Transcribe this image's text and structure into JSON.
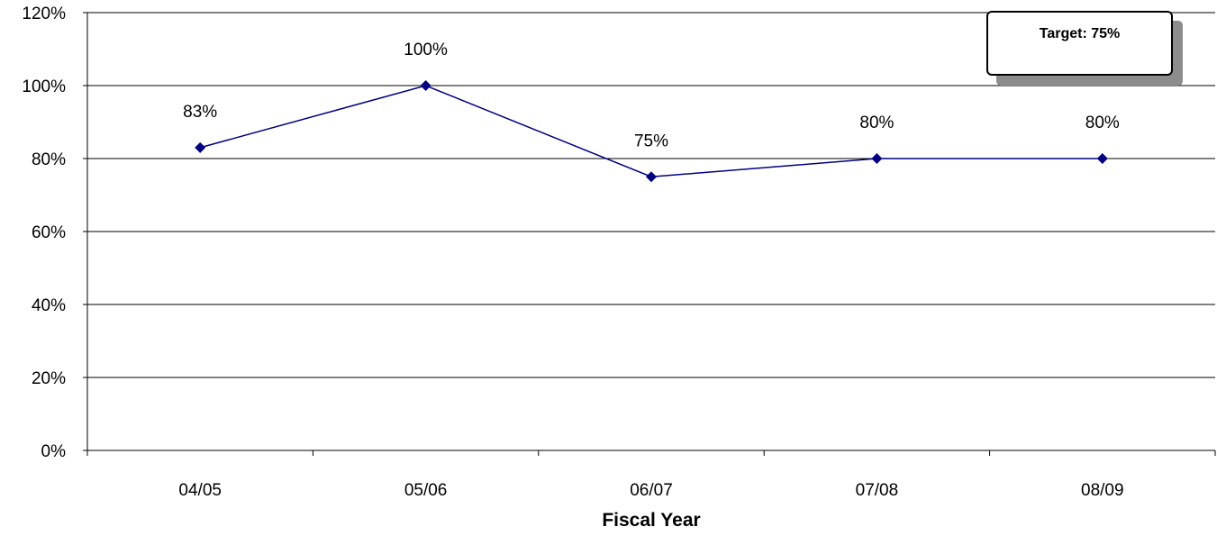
{
  "chart_data": {
    "type": "line",
    "categories": [
      "04/05",
      "05/06",
      "06/07",
      "07/08",
      "08/09"
    ],
    "values": [
      83,
      100,
      75,
      80,
      80
    ],
    "data_labels": [
      "83%",
      "100%",
      "75%",
      "80%",
      "80%"
    ],
    "ylim": [
      0,
      120
    ],
    "yticks": [
      0,
      20,
      40,
      60,
      80,
      100,
      120
    ],
    "ytick_labels": [
      "0%",
      "20%",
      "40%",
      "60%",
      "80%",
      "100%",
      "120%"
    ],
    "xlabel": "Fiscal Year",
    "ylabel": "",
    "title": "",
    "grid": true,
    "callout": "Target: 75%",
    "colors": {
      "series": "#000080",
      "grid": "#000000",
      "callout_shadow": "#8c8c8c"
    }
  }
}
